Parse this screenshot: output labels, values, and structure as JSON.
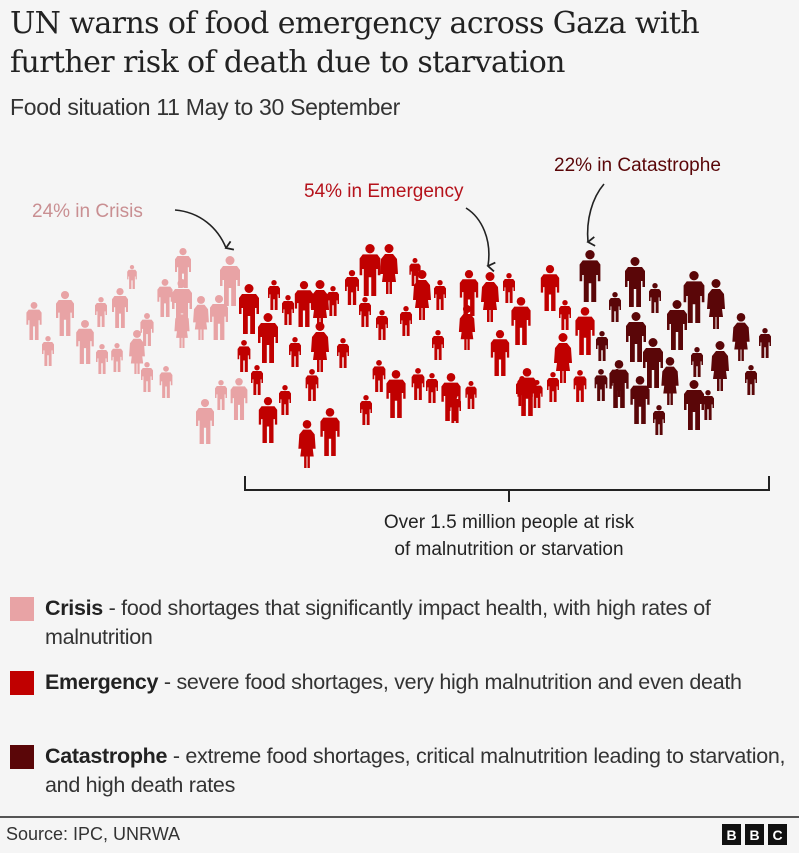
{
  "header": {
    "title": "UN warns of food emergency across Gaza with further risk of death due to starvation",
    "subtitle": "Food situation 11 May to 30 September"
  },
  "chart_data": {
    "type": "pictogram",
    "title": "UN warns of food emergency across Gaza with further risk of death due to starvation",
    "subtitle": "Food situation 11 May to 30 September",
    "categories": [
      "Crisis",
      "Emergency",
      "Catastrophe"
    ],
    "values": [
      24,
      54,
      22
    ],
    "unit": "%",
    "colors": {
      "Crisis": "#e8a3a5",
      "Emergency": "#c00000",
      "Catastrophe": "#5a0608"
    },
    "annotations": [
      {
        "category": "Crisis",
        "text": "24% in Crisis"
      },
      {
        "category": "Emergency",
        "text": "54% in Emergency"
      },
      {
        "category": "Catastrophe",
        "text": "22% in Catastrophe"
      }
    ],
    "bracket": {
      "covers": [
        "Emergency",
        "Catastrophe"
      ],
      "text_line1": "Over 1.5 million people at risk",
      "text_line2": "of malnutrition or starvation"
    }
  },
  "legend": [
    {
      "term": "Crisis",
      "description": " - food shortages that significantly impact health, with high rates of malnutrition",
      "color": "#e8a3a5"
    },
    {
      "term": "Emergency",
      "description": " - severe food shortages, very high malnutrition and even death",
      "color": "#c00000"
    },
    {
      "term": "Catastrophe",
      "description": " - extreme food shortages, critical malnutrition leading to starvation, and high death rates",
      "color": "#5a0608"
    }
  ],
  "footer": {
    "source": "Source: IPC, UNRWA",
    "logo_letters": [
      "B",
      "B",
      "C"
    ]
  }
}
